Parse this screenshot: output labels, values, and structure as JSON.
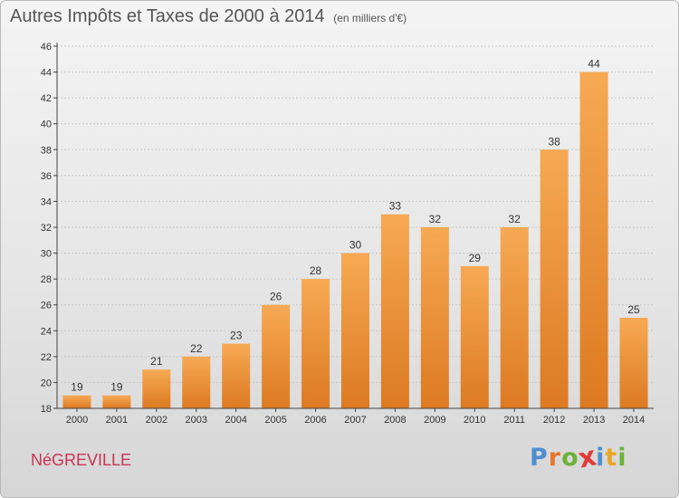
{
  "header": {
    "title": "Autres Impôts et Taxes de 2000 à 2014",
    "unit": "(en milliers d'€)"
  },
  "footer": {
    "commune": "NéGREVILLE",
    "logo_letters": [
      {
        "ch": "P",
        "color": "#4f8fd0"
      },
      {
        "ch": "r",
        "color": "#e8762a"
      },
      {
        "ch": "o",
        "color": "#6bb33a"
      },
      {
        "ch": "x",
        "color": "#e23b3b"
      },
      {
        "ch": "i",
        "color": "#4f8fd0"
      },
      {
        "ch": "t",
        "color": "#e8a52a"
      },
      {
        "ch": "i",
        "color": "#6bb33a"
      }
    ]
  },
  "chart_data": {
    "type": "bar",
    "categories": [
      "2000",
      "2001",
      "2002",
      "2003",
      "2004",
      "2005",
      "2006",
      "2007",
      "2008",
      "2009",
      "2010",
      "2011",
      "2012",
      "2013",
      "2014"
    ],
    "values": [
      19,
      19,
      21,
      22,
      23,
      26,
      28,
      30,
      33,
      32,
      29,
      32,
      38,
      44,
      25
    ],
    "ylim": [
      18,
      46
    ],
    "yticks": [
      18,
      20,
      22,
      24,
      26,
      28,
      30,
      32,
      34,
      36,
      38,
      40,
      42,
      44,
      46
    ],
    "grid": true,
    "bar_colors": {
      "top": "#f7a954",
      "bottom": "#dc7a22"
    }
  }
}
